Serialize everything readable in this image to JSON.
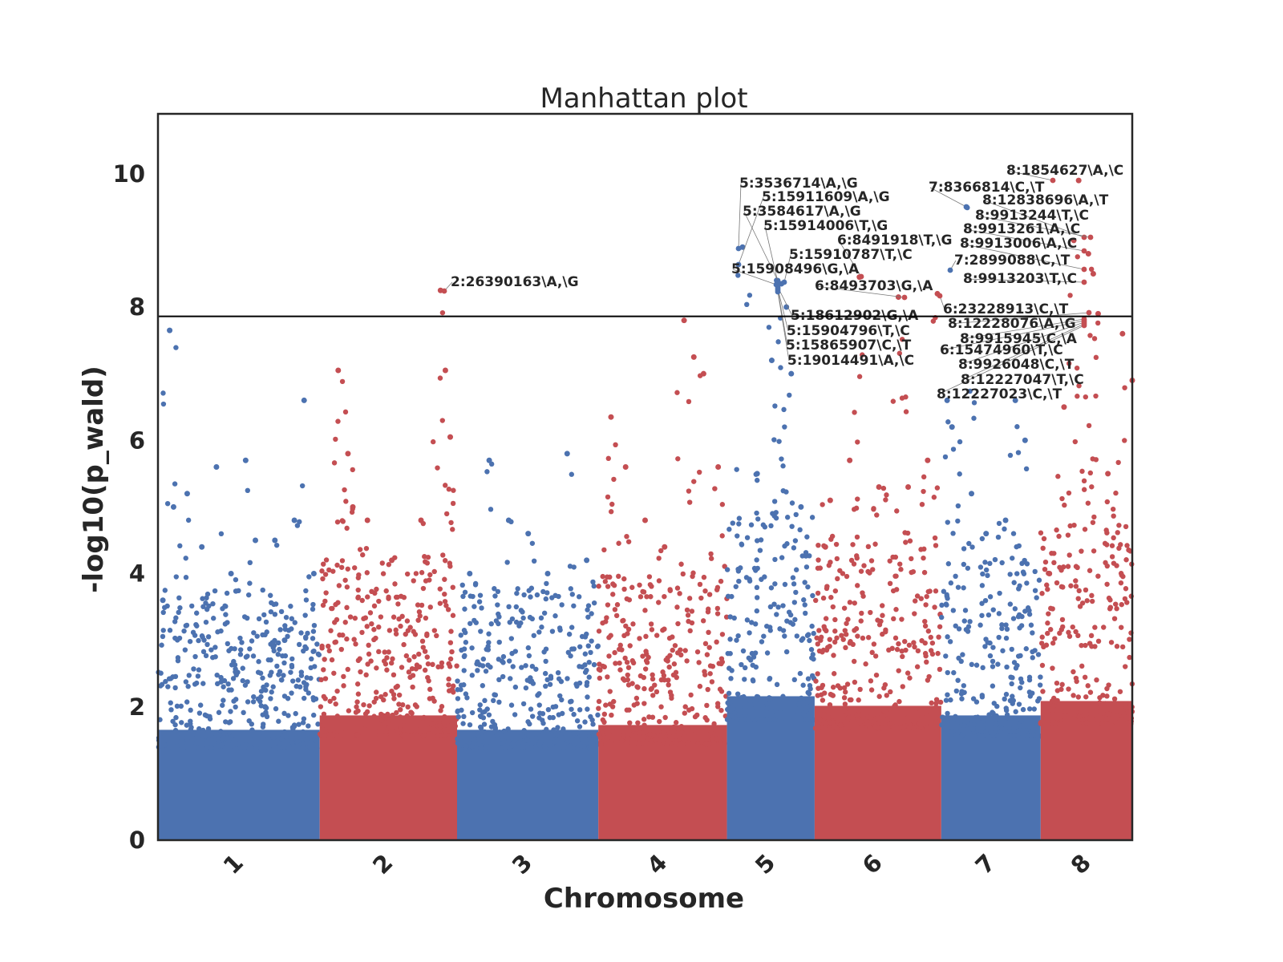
{
  "chart_data": {
    "type": "scatter",
    "title": "Manhattan plot",
    "xlabel": "Chromosome",
    "ylabel": "-log10(p_wald)",
    "ylim": [
      0,
      10.9
    ],
    "yticks": [
      0,
      2,
      4,
      6,
      8,
      10
    ],
    "threshold": 7.86,
    "grid": false,
    "legend": "none",
    "colors": {
      "odd": "#4c72b0",
      "even": "#c44e52",
      "threshold_line": "#000000",
      "frame": "#262626"
    },
    "chromosomes": [
      {
        "name": "1",
        "start": 0.0,
        "end": 0.166,
        "peaks": [
          [
            0.005,
            3.6
          ],
          [
            0.012,
            7.65
          ],
          [
            0.016,
            5.0
          ],
          [
            0.03,
            5.2
          ],
          [
            0.045,
            4.4
          ],
          [
            0.06,
            5.6
          ],
          [
            0.075,
            4.0
          ],
          [
            0.09,
            5.7
          ],
          [
            0.1,
            4.5
          ],
          [
            0.11,
            2.0
          ],
          [
            0.12,
            4.5
          ],
          [
            0.13,
            3.0
          ],
          [
            0.14,
            4.8
          ],
          [
            0.15,
            6.6
          ],
          [
            0.16,
            4.0
          ]
        ],
        "base": 2.3
      },
      {
        "name": "2",
        "start": 0.166,
        "end": 0.307,
        "peaks": [
          [
            0.185,
            7.05
          ],
          [
            0.195,
            5.8
          ],
          [
            0.2,
            5.0
          ],
          [
            0.215,
            4.8
          ],
          [
            0.24,
            4.2
          ],
          [
            0.27,
            4.8
          ],
          [
            0.29,
            8.25
          ],
          [
            0.295,
            7.05
          ],
          [
            0.3,
            6.05
          ]
        ],
        "base": 2.6
      },
      {
        "name": "3",
        "start": 0.307,
        "end": 0.452,
        "peaks": [
          [
            0.32,
            4.0
          ],
          [
            0.34,
            5.7
          ],
          [
            0.36,
            4.8
          ],
          [
            0.38,
            4.6
          ],
          [
            0.4,
            4.0
          ],
          [
            0.42,
            5.8
          ],
          [
            0.44,
            4.2
          ]
        ],
        "base": 2.3
      },
      {
        "name": "4",
        "start": 0.452,
        "end": 0.584,
        "peaks": [
          [
            0.465,
            6.35
          ],
          [
            0.48,
            5.6
          ],
          [
            0.5,
            4.8
          ],
          [
            0.52,
            4.4
          ],
          [
            0.54,
            7.8
          ],
          [
            0.55,
            7.25
          ],
          [
            0.56,
            7.0
          ],
          [
            0.575,
            5.6
          ]
        ],
        "base": 2.4
      },
      {
        "name": "5",
        "start": 0.584,
        "end": 0.674,
        "peaks": [
          [
            0.6,
            8.9
          ],
          [
            0.615,
            5.5
          ],
          [
            0.63,
            7.2
          ],
          [
            0.635,
            8.4
          ],
          [
            0.64,
            8.35
          ],
          [
            0.645,
            8.0
          ],
          [
            0.65,
            7.0
          ],
          [
            0.66,
            5.0
          ]
        ],
        "base": 3.0
      },
      {
        "name": "6",
        "start": 0.674,
        "end": 0.804,
        "peaks": [
          [
            0.685,
            4.4
          ],
          [
            0.69,
            5.1
          ],
          [
            0.71,
            5.7
          ],
          [
            0.72,
            8.45
          ],
          [
            0.74,
            5.3
          ],
          [
            0.76,
            8.15
          ],
          [
            0.77,
            5.3
          ],
          [
            0.79,
            5.7
          ],
          [
            0.8,
            8.2
          ]
        ],
        "base": 2.8
      },
      {
        "name": "7",
        "start": 0.804,
        "end": 0.906,
        "peaks": [
          [
            0.81,
            6.6
          ],
          [
            0.815,
            6.2
          ],
          [
            0.83,
            9.5
          ],
          [
            0.835,
            5.2
          ],
          [
            0.85,
            4.6
          ],
          [
            0.87,
            4.8
          ],
          [
            0.88,
            6.6
          ],
          [
            0.89,
            6.0
          ]
        ],
        "base": 2.6
      },
      {
        "name": "8",
        "start": 0.906,
        "end": 1.0,
        "peaks": [
          [
            0.915,
            4.0
          ],
          [
            0.93,
            6.5
          ],
          [
            0.94,
            9.0
          ],
          [
            0.945,
            9.9
          ],
          [
            0.955,
            8.8
          ],
          [
            0.96,
            8.5
          ],
          [
            0.965,
            7.9
          ],
          [
            0.975,
            5.5
          ],
          [
            0.99,
            7.6
          ],
          [
            1.0,
            6.9
          ]
        ],
        "base": 2.9
      }
    ],
    "annotations": [
      {
        "label": "2:26390163\\A,\\G"
      },
      {
        "label": "5:3536714\\A,\\G"
      },
      {
        "label": "5:15911609\\A,\\G"
      },
      {
        "label": "5:3584617\\A,\\G"
      },
      {
        "label": "5:15914006\\T,\\G"
      },
      {
        "label": "6:8491918\\T,\\G"
      },
      {
        "label": "5:15910787\\T,\\C"
      },
      {
        "label": "5:15908496\\G,\\A"
      },
      {
        "label": "6:8493703\\G,\\A"
      },
      {
        "label": "5:18612902\\G,\\A"
      },
      {
        "label": "5:15904796\\T,\\C"
      },
      {
        "label": "5:15865907\\C,\\T"
      },
      {
        "label": "5:19014491\\A,\\C"
      },
      {
        "label": "8:1854627\\A,\\C"
      },
      {
        "label": "7:8366814\\C,\\T"
      },
      {
        "label": "8:12838696\\A,\\T"
      },
      {
        "label": "8:9913244\\T,\\C"
      },
      {
        "label": "8:9913261\\A,\\C"
      },
      {
        "label": "8:9913006\\A,\\C"
      },
      {
        "label": "7:2899088\\C,\\T"
      },
      {
        "label": "8:9913203\\T,\\C"
      },
      {
        "label": "6:23228913\\C,\\T"
      },
      {
        "label": "8:12228076\\A,\\G"
      },
      {
        "label": "8:9915945\\C,\\A"
      },
      {
        "label": "6:15474960\\T,\\C"
      },
      {
        "label": "8:9926048\\C,\\T"
      },
      {
        "label": "8:12227047\\T,\\C"
      },
      {
        "label": "8:12227023\\C,\\T"
      }
    ]
  }
}
